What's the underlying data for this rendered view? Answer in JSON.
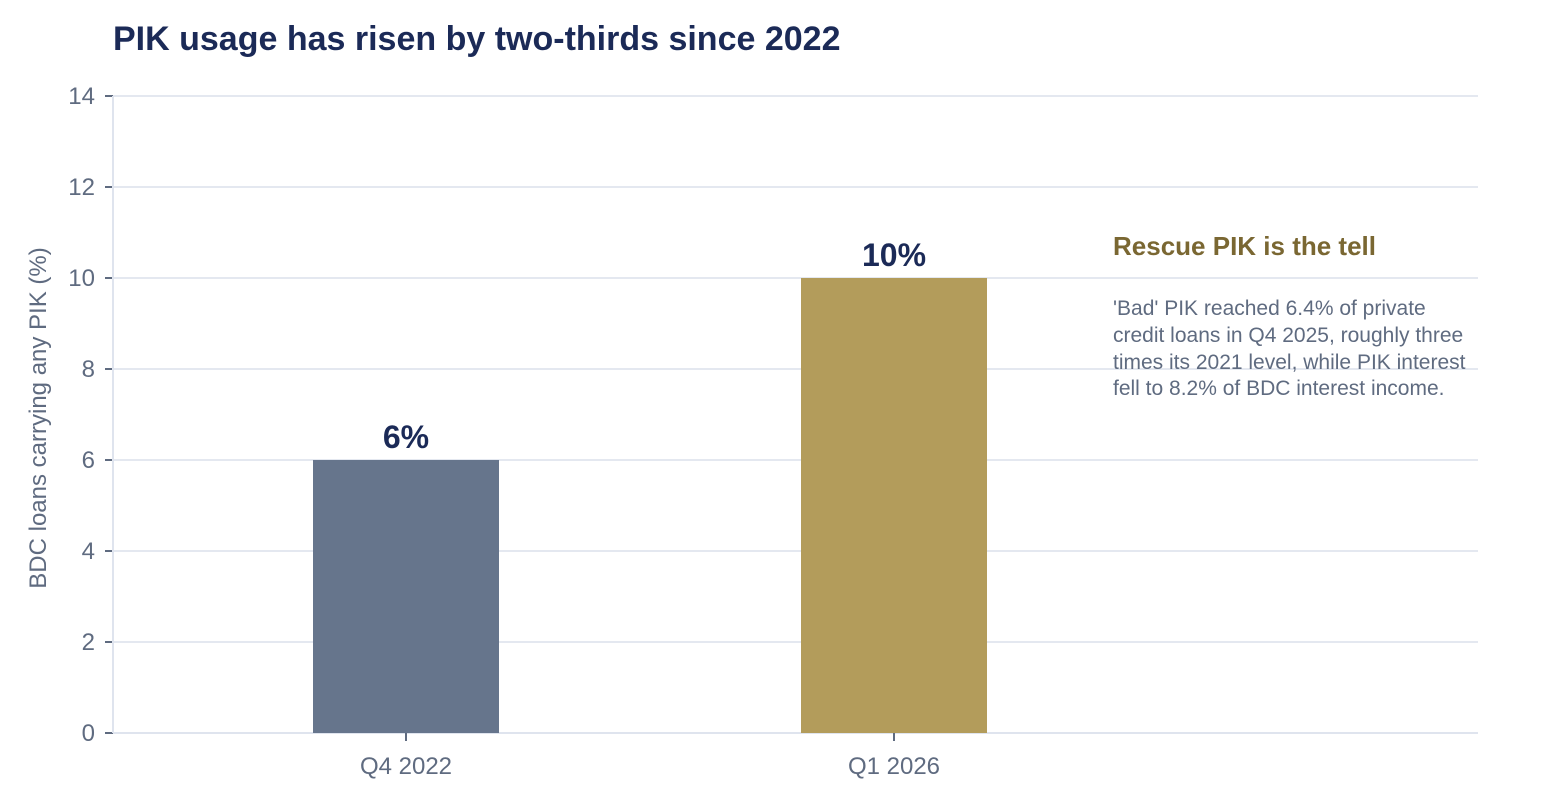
{
  "chart_data": {
    "type": "bar",
    "title": "PIK usage has risen by two-thirds since 2022",
    "xlabel": "",
    "ylabel": "BDC loans carrying any PIK (%)",
    "categories": [
      "Q4 2022",
      "Q1 2026"
    ],
    "values": [
      6,
      10
    ],
    "data_labels": [
      "6%",
      "10%"
    ],
    "bar_colors": [
      "#66758c",
      "#b39c5b"
    ],
    "ylim": [
      0,
      14
    ],
    "yticks": [
      0,
      2,
      4,
      6,
      8,
      10,
      12,
      14
    ],
    "ytick_labels": [
      "0",
      "2",
      "4",
      "6",
      "8",
      "10",
      "12",
      "14"
    ],
    "grid": true,
    "legend": "none",
    "annotation": {
      "title": "Rescue PIK is the tell",
      "lines": [
        "'Bad' PIK reached 6.4% of private",
        "credit loans in Q4 2025, roughly three",
        "times its 2021 level, while PIK interest",
        "fell to 8.2% of BDC interest income."
      ]
    }
  }
}
